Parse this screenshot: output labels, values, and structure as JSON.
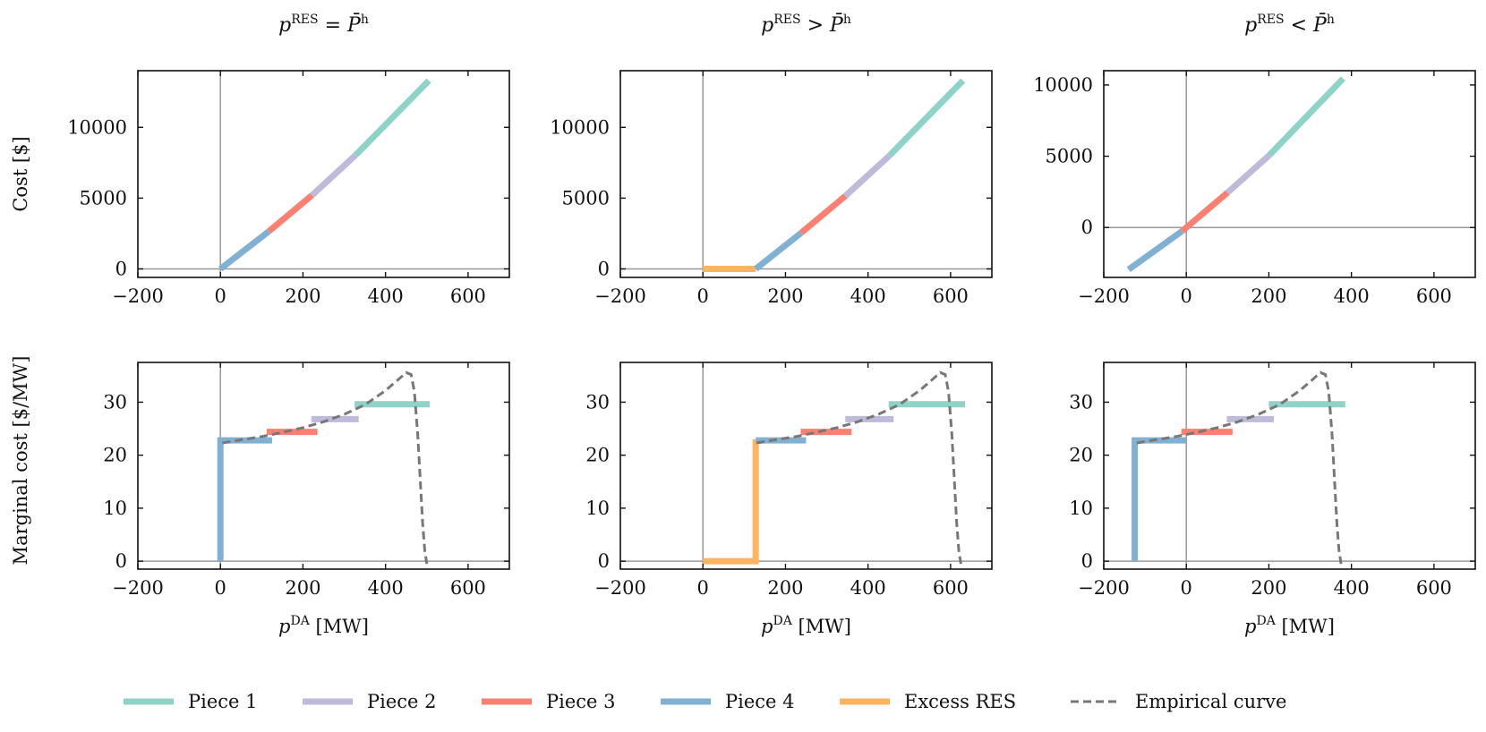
{
  "colors": {
    "piece1": "#8dd3c7",
    "piece2": "#bebada",
    "piece3": "#fb8072",
    "piece4": "#80b1d3",
    "excess": "#fdb462",
    "empirical": "#777777",
    "reference_line": "#999999"
  },
  "column_titles": [
    {
      "base": "p",
      "sup": "RES",
      "rel": "=",
      "rhs": "P̄",
      "rhs_sup": "h"
    },
    {
      "base": "p",
      "sup": "RES",
      "rel": ">",
      "rhs": "P̄",
      "rhs_sup": "h"
    },
    {
      "base": "p",
      "sup": "RES",
      "rel": "<",
      "rhs": "P̄",
      "rhs_sup": "h"
    }
  ],
  "row_ylabels": [
    "Cost [$]",
    "Marginal cost [$/MW]"
  ],
  "xlabel": {
    "base": "p",
    "sup": "DA",
    "unit": "[MW]"
  },
  "legend": [
    {
      "key": "piece1",
      "label": "Piece 1",
      "dashed": false
    },
    {
      "key": "piece2",
      "label": "Piece 2",
      "dashed": false
    },
    {
      "key": "piece3",
      "label": "Piece 3",
      "dashed": false
    },
    {
      "key": "piece4",
      "label": "Piece 4",
      "dashed": false
    },
    {
      "key": "excess",
      "label": "Excess RES",
      "dashed": false
    },
    {
      "key": "empirical",
      "label": "Empirical curve",
      "dashed": true
    }
  ],
  "chart_data": [
    {
      "type": "line",
      "panel": "cost-eq",
      "row": 0,
      "col": 0,
      "xlim": [
        -200,
        700
      ],
      "ylim": [
        -600,
        14000
      ],
      "xticks": [
        -200,
        0,
        200,
        400,
        600
      ],
      "yticks": [
        0,
        5000,
        10000
      ],
      "ref_lines": {
        "x": 0,
        "y": 0
      },
      "series": [
        {
          "key": "piece4",
          "x": [
            0,
            117
          ],
          "y": [
            0,
            2650
          ]
        },
        {
          "key": "piece3",
          "x": [
            117,
            222
          ],
          "y": [
            2650,
            5200
          ]
        },
        {
          "key": "piece2",
          "x": [
            222,
            328
          ],
          "y": [
            5200,
            8050
          ]
        },
        {
          "key": "piece1",
          "x": [
            328,
            505
          ],
          "y": [
            8050,
            13300
          ]
        }
      ]
    },
    {
      "type": "line",
      "panel": "cost-gt",
      "row": 0,
      "col": 1,
      "xlim": [
        -200,
        700
      ],
      "ylim": [
        -600,
        14000
      ],
      "xticks": [
        -200,
        0,
        200,
        400,
        600
      ],
      "yticks": [
        0,
        5000,
        10000
      ],
      "ref_lines": {
        "x": 0,
        "y": 0
      },
      "series": [
        {
          "key": "excess",
          "x": [
            0,
            128
          ],
          "y": [
            0,
            0
          ]
        },
        {
          "key": "piece4",
          "x": [
            128,
            238
          ],
          "y": [
            0,
            2550
          ]
        },
        {
          "key": "piece3",
          "x": [
            238,
            345
          ],
          "y": [
            2550,
            5150
          ]
        },
        {
          "key": "piece2",
          "x": [
            345,
            452
          ],
          "y": [
            5150,
            8000
          ]
        },
        {
          "key": "piece1",
          "x": [
            452,
            630
          ],
          "y": [
            8000,
            13300
          ]
        }
      ]
    },
    {
      "type": "line",
      "panel": "cost-lt",
      "row": 0,
      "col": 2,
      "xlim": [
        -200,
        700
      ],
      "ylim": [
        -3500,
        11000
      ],
      "xticks": [
        -200,
        0,
        200,
        400,
        600
      ],
      "yticks": [
        0,
        5000,
        10000
      ],
      "ref_lines": {
        "x": 0,
        "y": 0
      },
      "series": [
        {
          "key": "piece4",
          "x": [
            -140,
            -10
          ],
          "y": [
            -2950,
            -250
          ]
        },
        {
          "key": "piece3",
          "x": [
            -10,
            100
          ],
          "y": [
            -250,
            2450
          ]
        },
        {
          "key": "piece2",
          "x": [
            100,
            202
          ],
          "y": [
            2450,
            5100
          ]
        },
        {
          "key": "piece1",
          "x": [
            202,
            380
          ],
          "y": [
            5100,
            10450
          ]
        }
      ]
    },
    {
      "type": "line",
      "panel": "mc-eq",
      "row": 1,
      "col": 0,
      "xlim": [
        -200,
        700
      ],
      "ylim": [
        -1.5,
        37.5
      ],
      "xticks": [
        -200,
        0,
        200,
        400,
        600
      ],
      "yticks": [
        0,
        10,
        20,
        30
      ],
      "ref_lines": {
        "x": 0,
        "y": 0
      },
      "series": [
        {
          "key": "piece4",
          "x": [
            0,
            0,
            125
          ],
          "y": [
            0,
            22.8,
            22.8
          ]
        },
        {
          "key": "piece3",
          "x": [
            112,
            235
          ],
          "y": [
            24.4,
            24.4
          ]
        },
        {
          "key": "piece2",
          "x": [
            220,
            335
          ],
          "y": [
            26.8,
            26.8
          ]
        },
        {
          "key": "piece1",
          "x": [
            325,
            507
          ],
          "y": [
            29.6,
            29.6
          ]
        },
        {
          "key": "empirical",
          "dashed": true,
          "x": [
            5,
            50,
            100,
            150,
            200,
            250,
            300,
            350,
            400,
            430,
            450,
            462,
            470,
            478,
            485,
            490,
            495,
            500
          ],
          "y": [
            22.3,
            22.9,
            23.5,
            24.3,
            25.2,
            26.3,
            27.7,
            29.5,
            32.2,
            34.2,
            35.6,
            35.2,
            32,
            24,
            14,
            7,
            2,
            -0.5
          ]
        }
      ]
    },
    {
      "type": "line",
      "panel": "mc-gt",
      "row": 1,
      "col": 1,
      "xlim": [
        -200,
        700
      ],
      "ylim": [
        -1.5,
        37.5
      ],
      "xticks": [
        -200,
        0,
        200,
        400,
        600
      ],
      "yticks": [
        0,
        10,
        20,
        30
      ],
      "ref_lines": {
        "x": 0,
        "y": 0
      },
      "series": [
        {
          "key": "excess",
          "x": [
            0,
            128,
            128
          ],
          "y": [
            0,
            0,
            23
          ]
        },
        {
          "key": "piece4",
          "x": [
            128,
            250
          ],
          "y": [
            22.8,
            22.8
          ]
        },
        {
          "key": "piece3",
          "x": [
            237,
            360
          ],
          "y": [
            24.4,
            24.4
          ]
        },
        {
          "key": "piece2",
          "x": [
            345,
            462
          ],
          "y": [
            26.8,
            26.8
          ]
        },
        {
          "key": "piece1",
          "x": [
            450,
            635
          ],
          "y": [
            29.6,
            29.6
          ]
        },
        {
          "key": "empirical",
          "dashed": true,
          "x": [
            130,
            175,
            225,
            275,
            325,
            375,
            425,
            475,
            525,
            555,
            575,
            587,
            595,
            603,
            610,
            615,
            620,
            625
          ],
          "y": [
            22.3,
            22.9,
            23.5,
            24.3,
            25.2,
            26.3,
            27.7,
            29.5,
            32.2,
            34.2,
            35.6,
            35.2,
            32,
            24,
            14,
            7,
            2,
            -0.5
          ]
        }
      ]
    },
    {
      "type": "line",
      "panel": "mc-lt",
      "row": 1,
      "col": 2,
      "xlim": [
        -200,
        700
      ],
      "ylim": [
        -1.5,
        37.5
      ],
      "xticks": [
        -200,
        0,
        200,
        400,
        600
      ],
      "yticks": [
        0,
        10,
        20,
        30
      ],
      "ref_lines": {
        "x": 0,
        "y": 0
      },
      "series": [
        {
          "key": "piece4",
          "x": [
            -125,
            -125,
            0
          ],
          "y": [
            0,
            22.8,
            22.8
          ]
        },
        {
          "key": "piece3",
          "x": [
            -12,
            112
          ],
          "y": [
            24.4,
            24.4
          ]
        },
        {
          "key": "piece2",
          "x": [
            98,
            212
          ],
          "y": [
            26.8,
            26.8
          ]
        },
        {
          "key": "piece1",
          "x": [
            200,
            385
          ],
          "y": [
            29.6,
            29.6
          ]
        },
        {
          "key": "empirical",
          "dashed": true,
          "x": [
            -120,
            -75,
            -25,
            25,
            75,
            125,
            175,
            225,
            275,
            305,
            325,
            337,
            345,
            353,
            360,
            365,
            370,
            375
          ],
          "y": [
            22.3,
            22.9,
            23.5,
            24.3,
            25.2,
            26.3,
            27.7,
            29.5,
            32.2,
            34.2,
            35.6,
            35.2,
            32,
            24,
            14,
            7,
            2,
            -0.5
          ]
        }
      ]
    }
  ]
}
